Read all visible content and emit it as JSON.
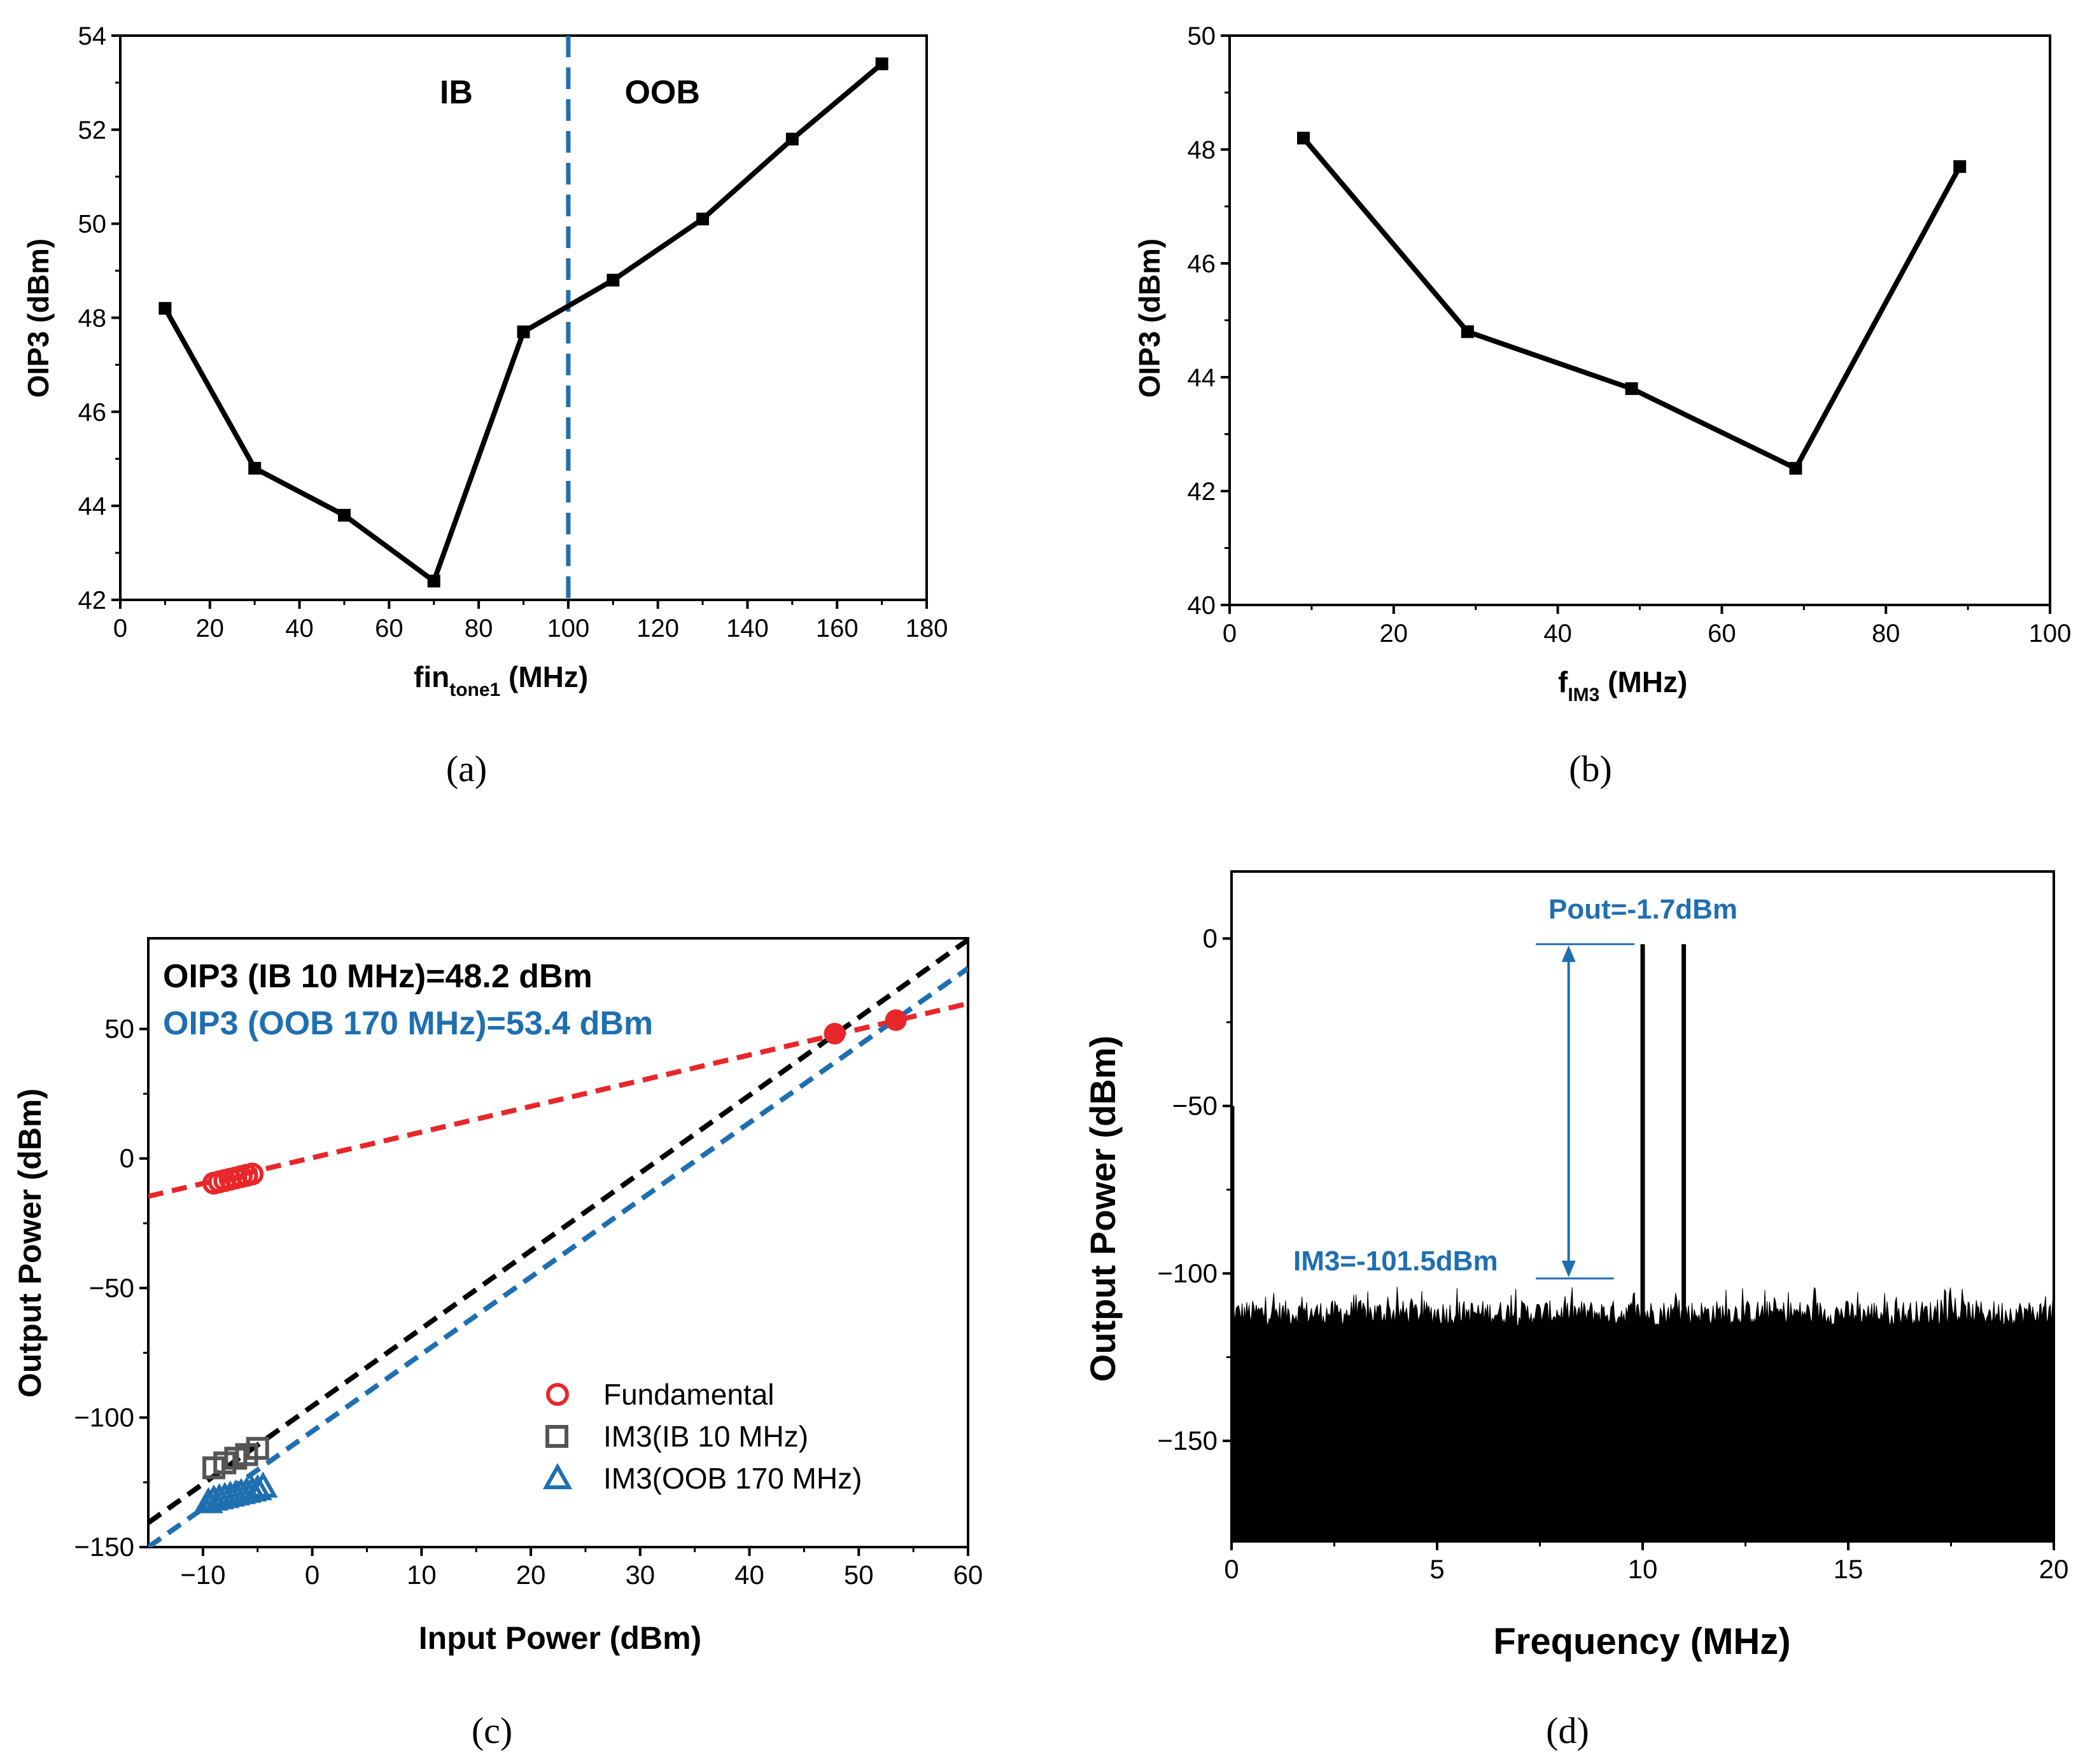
{
  "colors": {
    "black": "#000000",
    "blue": "#1f6fb0",
    "red": "#e8272a",
    "gray": "#555555"
  },
  "chart_data": [
    {
      "id": "a",
      "type": "line",
      "caption": "(a)",
      "xlabel_main": "fin",
      "xlabel_sub": "tone1",
      "xlabel_tail": " (MHz)",
      "ylabel": "OIP3 (dBm)",
      "xlim": [
        0,
        180
      ],
      "ylim": [
        42,
        54
      ],
      "xticks": [
        "0",
        "20",
        "40",
        "60",
        "80",
        "100",
        "120",
        "140",
        "160",
        "180"
      ],
      "yticks": [
        "42",
        "44",
        "46",
        "48",
        "50",
        "52",
        "54"
      ],
      "series": [
        {
          "name": "OIP3",
          "x": [
            10,
            30,
            50,
            70,
            90,
            110,
            130,
            150,
            170
          ],
          "y": [
            48.2,
            44.8,
            43.8,
            42.4,
            47.7,
            48.8,
            50.1,
            51.8,
            53.4
          ]
        }
      ],
      "vline": {
        "x": 100,
        "style": "dashed"
      },
      "annotations": [
        {
          "text": "IB",
          "x": 75,
          "y": 52.8
        },
        {
          "text": "OOB",
          "x": 121,
          "y": 52.8
        }
      ]
    },
    {
      "id": "b",
      "type": "line",
      "caption": "(b)",
      "xlabel_main": "f",
      "xlabel_sub": "IM3",
      "xlabel_tail": " (MHz)",
      "ylabel": "OIP3 (dBm)",
      "xlim": [
        0,
        100
      ],
      "ylim": [
        40,
        50
      ],
      "xticks": [
        "0",
        "20",
        "40",
        "60",
        "80",
        "100"
      ],
      "yticks": [
        "40",
        "42",
        "44",
        "46",
        "48",
        "50"
      ],
      "series": [
        {
          "name": "OIP3",
          "x": [
            9,
            29,
            49,
            69,
            89
          ],
          "y": [
            48.2,
            44.8,
            43.8,
            42.4,
            47.7
          ]
        }
      ]
    },
    {
      "id": "c",
      "type": "scatter",
      "caption": "(c)",
      "xlabel": "Input Power (dBm)",
      "ylabel": "Output Power (dBm)",
      "xlim": [
        -15,
        60
      ],
      "ylim": [
        -150,
        85
      ],
      "xticks": [
        "−10",
        "0",
        "10",
        "20",
        "30",
        "40",
        "50",
        "60"
      ],
      "xtick_values": [
        -10,
        0,
        10,
        20,
        30,
        40,
        50,
        60
      ],
      "yticks": [
        "−150",
        "−100",
        "−50",
        "0",
        "50"
      ],
      "ytick_values": [
        -150,
        -100,
        -50,
        0,
        50
      ],
      "legend": [
        {
          "label": "Fundamental",
          "marker": "circle"
        },
        {
          "label": "IM3(IB 10 MHz)",
          "marker": "square"
        },
        {
          "label": "IM3(OOB 170 MHz)",
          "marker": "triangle"
        }
      ],
      "series": [
        {
          "name": "Fundamental",
          "x": [
            -9,
            -8.5,
            -8,
            -7.5,
            -7,
            -6.5,
            -6,
            -5.5
          ],
          "y": [
            -9.5,
            -9,
            -8.5,
            -8,
            -7.5,
            -7,
            -6.5,
            -6
          ]
        },
        {
          "name": "IM3(IB 10 MHz)",
          "x": [
            -9,
            -8,
            -7,
            -6,
            -5
          ],
          "y": [
            -119.4,
            -117.5,
            -115.7,
            -114.3,
            -111.9
          ]
        },
        {
          "name": "IM3(OOB 170 MHz)",
          "x": [
            -9.5,
            -9,
            -8.5,
            -8,
            -7.5,
            -7,
            -6.5,
            -6,
            -5.5,
            -5,
            -4.5
          ],
          "y": [
            -132.5,
            -131.5,
            -131,
            -130.5,
            -130,
            -129.5,
            -129,
            -128.5,
            -128,
            -127.5,
            -126.5
          ]
        }
      ],
      "fit_lines": [
        {
          "name": "Fundamental fit",
          "color": "red",
          "x": [
            -15,
            60
          ],
          "y": [
            -14.6,
            59.8
          ]
        },
        {
          "name": "IM3 IB fit",
          "color": "black",
          "x": [
            -15,
            60
          ],
          "y": [
            -140.6,
            84.4
          ]
        },
        {
          "name": "IM3 OOB fit",
          "color": "blue",
          "x": [
            -15,
            60
          ],
          "y": [
            -150,
            73.4
          ]
        }
      ],
      "intercepts": [
        {
          "x": 47.8,
          "y": 48.2
        },
        {
          "x": 53.4,
          "y": 53.4
        }
      ],
      "annotations": [
        {
          "text": "OIP3 (IB 10 MHz)=48.2 dBm",
          "color": "black"
        },
        {
          "text": "OIP3 (OOB 170 MHz)=53.4 dBm",
          "color": "blue"
        }
      ]
    },
    {
      "id": "d",
      "type": "spectrum",
      "caption": "(d)",
      "xlabel": "Frequency (MHz)",
      "ylabel": "Output Power (dBm)",
      "xlim": [
        0,
        20
      ],
      "ylim": [
        -180,
        20
      ],
      "xticks": [
        "0",
        "5",
        "10",
        "15",
        "20"
      ],
      "xtick_values": [
        0,
        5,
        10,
        15,
        20
      ],
      "yticks": [
        "−150",
        "−100",
        "−50",
        "0"
      ],
      "ytick_values": [
        -150,
        -100,
        -50,
        0
      ],
      "noise_floor": [
        -125,
        -108
      ],
      "tones": [
        {
          "x": 10,
          "y": -1.7
        },
        {
          "x": 11,
          "y": -1.7
        }
      ],
      "dc_spike": {
        "x": 0,
        "y": -50
      },
      "annotations": [
        {
          "text": "Pout=-1.7dBm",
          "value": -1.7
        },
        {
          "text": "IM3=-101.5dBm",
          "value": -101.5
        }
      ]
    }
  ]
}
